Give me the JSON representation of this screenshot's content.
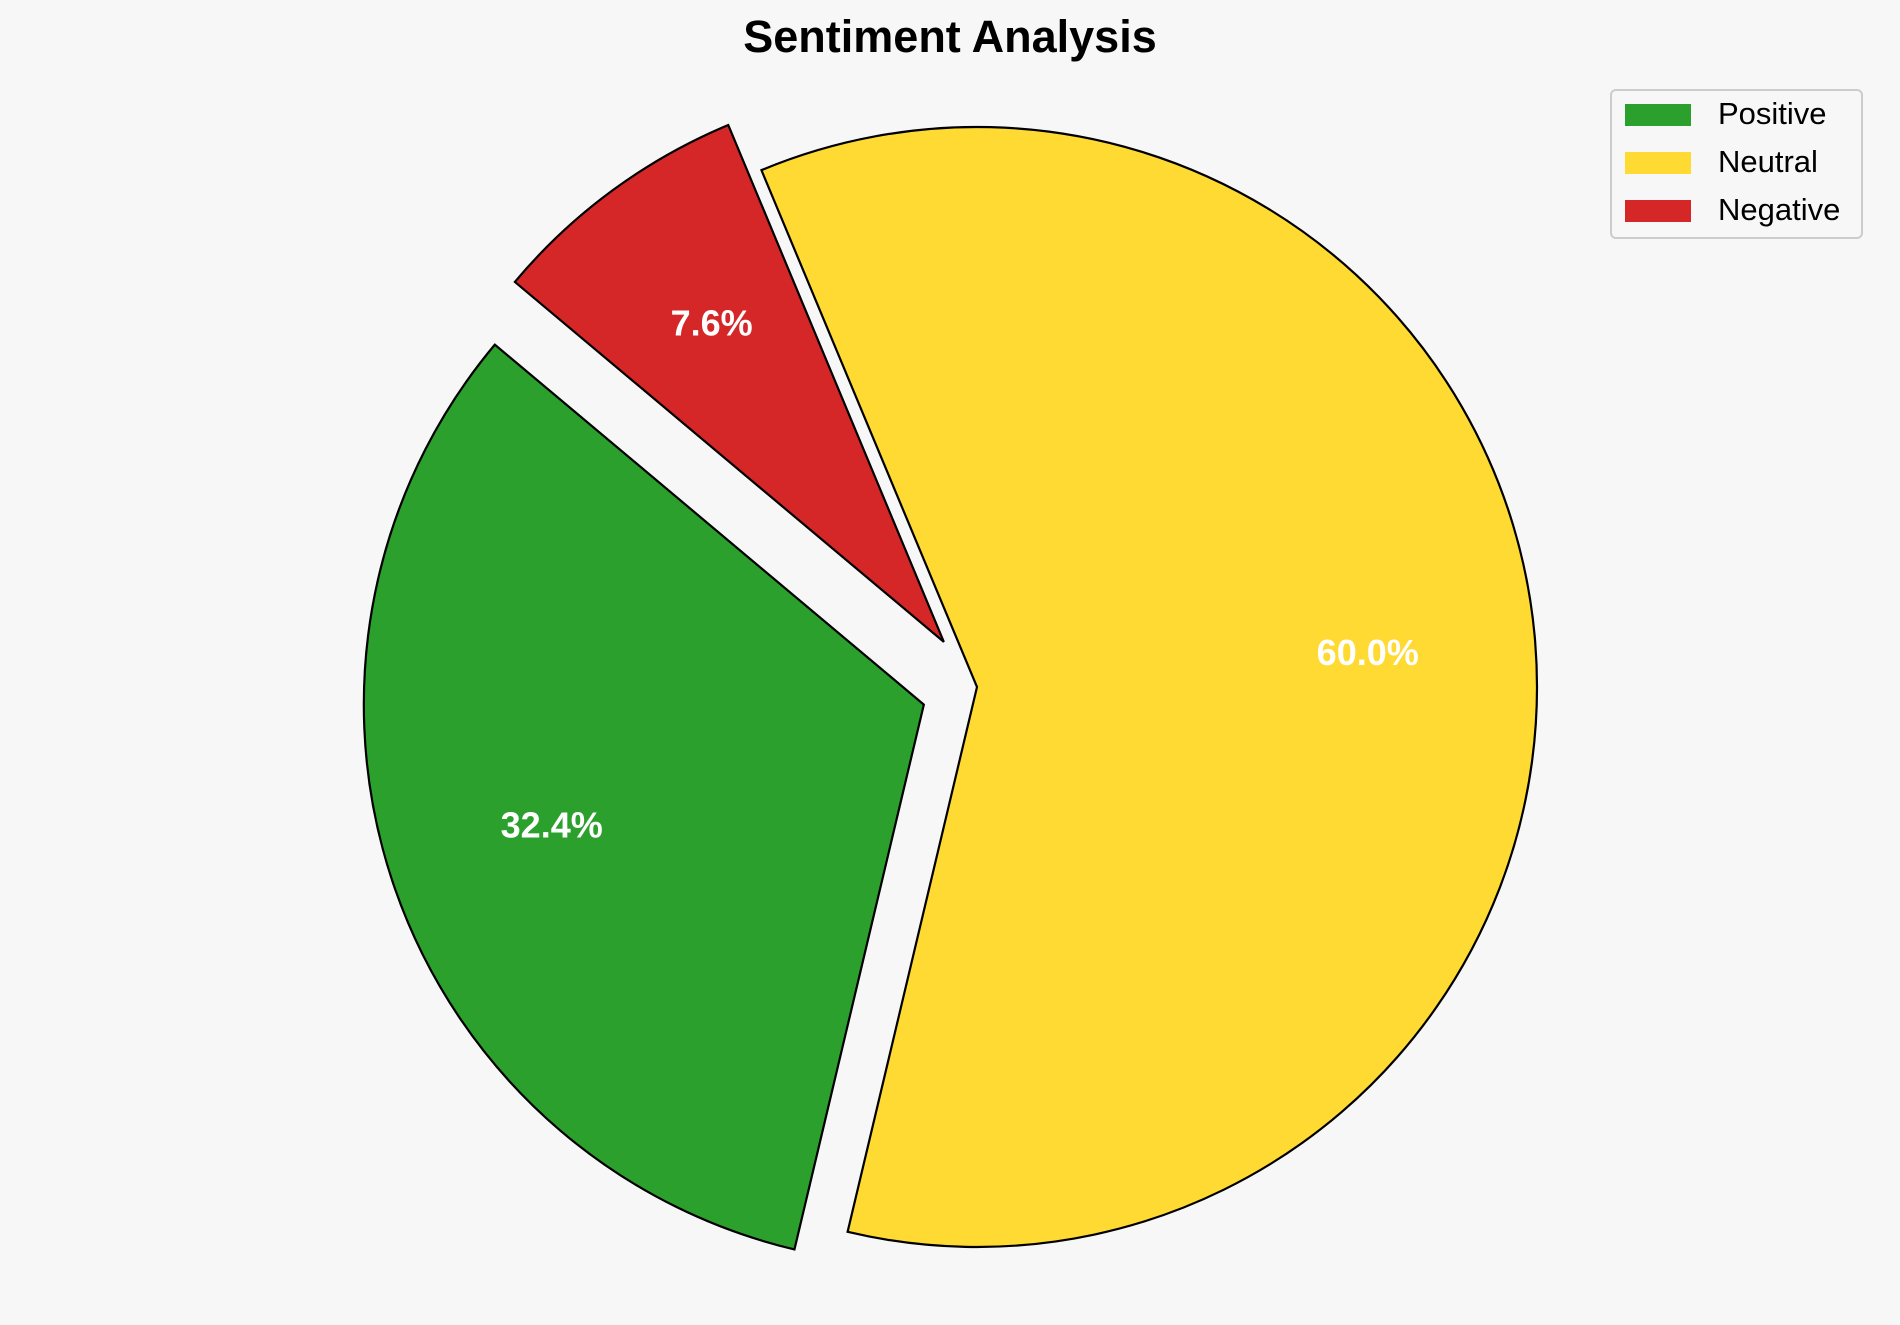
{
  "chart_data": {
    "type": "pie",
    "title": "Sentiment Analysis",
    "categories": [
      "Positive",
      "Neutral",
      "Negative"
    ],
    "values": [
      32.4,
      60.0,
      7.6
    ],
    "value_labels": [
      "32.4%",
      "60.0%",
      "7.6%"
    ],
    "colors": [
      "#2ca02c",
      "#ffda33",
      "#d62728"
    ],
    "explode": [
      0.1,
      0,
      0.1
    ],
    "startangle": 140,
    "legend": "upper right"
  }
}
